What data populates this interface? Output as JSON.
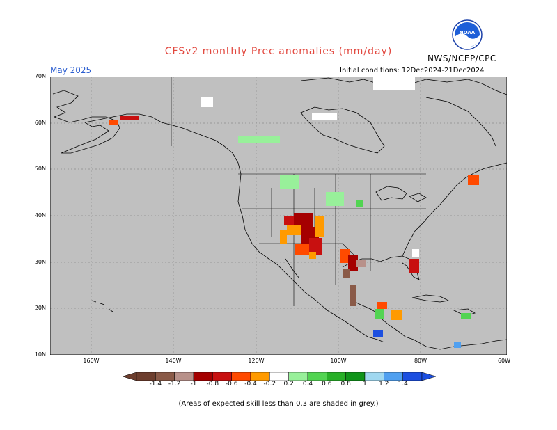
{
  "header": {
    "title": "CFSv2 monthly Prec anomalies (mm/day)",
    "org": "NWS/NCEP/CPC",
    "month": "May 2025",
    "initial_conditions": "Initial conditions: 12Dec2024-21Dec2024"
  },
  "map": {
    "lat_labels": [
      "70N",
      "60N",
      "50N",
      "40N",
      "30N",
      "20N",
      "10N"
    ],
    "lon_labels": [
      "160W",
      "140W",
      "120W",
      "100W",
      "80W",
      "60W"
    ],
    "background_color": "#c0c0c0",
    "grid": "dotted"
  },
  "colorbar": {
    "labels": [
      "-1.4",
      "-1.2",
      "-1",
      "-0.8",
      "-0.6",
      "-0.4",
      "-0.2",
      "0.2",
      "0.4",
      "0.6",
      "0.8",
      "1",
      "1.2",
      "1.4"
    ],
    "colors": [
      "#6d3e2e",
      "#8a5a48",
      "#b8918a",
      "#a50000",
      "#c81010",
      "#ff4a00",
      "#ff9a00",
      "#ffffff",
      "#98f09a",
      "#52d452",
      "#28b028",
      "#10941a",
      "#a0d8f0",
      "#50a0f0",
      "#1c4fe0"
    ]
  },
  "footnote": "(Areas of expected skill less than 0.3 are shaded in grey.)",
  "logo": {
    "text": "NOAA",
    "icon": "noaa-logo-icon"
  }
}
